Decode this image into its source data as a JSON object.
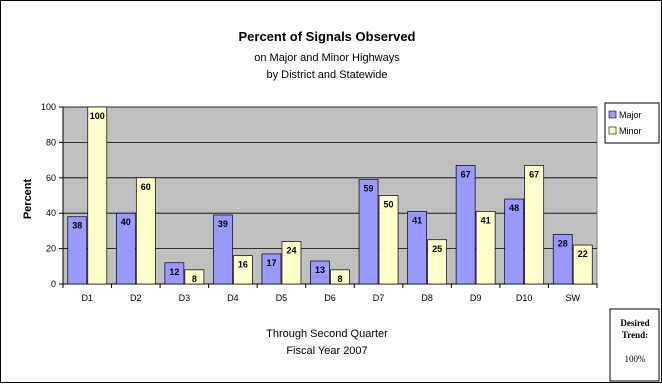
{
  "chart_data": {
    "type": "bar",
    "title": "Percent of Signals Observed",
    "subtitle_lines": [
      "on Major and Minor Highways",
      "by District and Statewide"
    ],
    "ylabel": "Percent",
    "xlabel_lines": [
      "Through Second Quarter",
      "Fiscal Year 2007"
    ],
    "categories": [
      "D1",
      "D2",
      "D3",
      "D4",
      "D5",
      "D6",
      "D7",
      "D8",
      "D9",
      "D10",
      "SW"
    ],
    "series": [
      {
        "name": "Major",
        "values": [
          38,
          40,
          12,
          39,
          17,
          13,
          59,
          41,
          67,
          48,
          28
        ],
        "color": "#9999ff"
      },
      {
        "name": "Minor",
        "values": [
          100,
          60,
          8,
          16,
          24,
          8,
          50,
          25,
          41,
          67,
          22
        ],
        "color": "#ffffcc"
      }
    ],
    "ylim": [
      0,
      100
    ],
    "yticks": [
      0,
      20,
      40,
      60,
      80,
      100
    ],
    "grid": true,
    "plot_background": "#c0c0c0",
    "legend_position": "right",
    "desired_trend": {
      "label_line1": "Desired",
      "label_line2": "Trend:",
      "value": "100%"
    }
  }
}
